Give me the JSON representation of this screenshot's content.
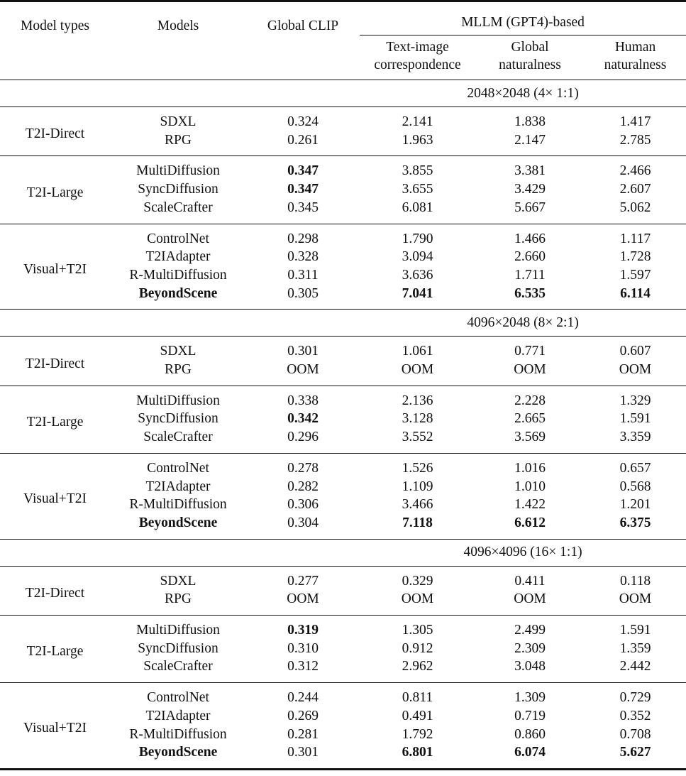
{
  "header": {
    "model_types": "Model types",
    "models": "Models",
    "global_clip": "Global CLIP",
    "mllm_group": "MLLM (GPT4)-based",
    "text_image_1": "Text-image",
    "text_image_2": "correspondence",
    "global_nat_1": "Global",
    "global_nat_2": "naturalness",
    "human_nat_1": "Human",
    "human_nat_2": "naturalness"
  },
  "sections": [
    {
      "label": "2048×2048 (4× 1:1)",
      "groups": [
        {
          "type": "T2I-Direct",
          "rows": [
            {
              "model": "SDXL",
              "values": [
                "0.324",
                "2.141",
                "1.838",
                "1.417"
              ],
              "bold": []
            },
            {
              "model": "RPG",
              "values": [
                "0.261",
                "1.963",
                "2.147",
                "2.785"
              ],
              "bold": []
            }
          ]
        },
        {
          "type": "T2I-Large",
          "rows": [
            {
              "model": "MultiDiffusion",
              "values": [
                "0.347",
                "3.855",
                "3.381",
                "2.466"
              ],
              "bold": [
                1
              ]
            },
            {
              "model": "SyncDiffusion",
              "values": [
                "0.347",
                "3.655",
                "3.429",
                "2.607"
              ],
              "bold": [
                1
              ]
            },
            {
              "model": "ScaleCrafter",
              "values": [
                "0.345",
                "6.081",
                "5.667",
                "5.062"
              ],
              "bold": []
            }
          ]
        },
        {
          "type": "Visual+T2I",
          "rows": [
            {
              "model": "ControlNet",
              "values": [
                "0.298",
                "1.790",
                "1.466",
                "1.117"
              ],
              "bold": []
            },
            {
              "model": "T2IAdapter",
              "values": [
                "0.328",
                "3.094",
                "2.660",
                "1.728"
              ],
              "bold": []
            },
            {
              "model": "R-MultiDiffusion",
              "values": [
                "0.311",
                "3.636",
                "1.711",
                "1.597"
              ],
              "bold": []
            },
            {
              "model": "BeyondScene",
              "values": [
                "0.305",
                "7.041",
                "6.535",
                "6.114"
              ],
              "bold": [
                0,
                2,
                3,
                4
              ]
            }
          ]
        }
      ]
    },
    {
      "label": "4096×2048 (8× 2:1)",
      "groups": [
        {
          "type": "T2I-Direct",
          "rows": [
            {
              "model": "SDXL",
              "values": [
                "0.301",
                "1.061",
                "0.771",
                "0.607"
              ],
              "bold": []
            },
            {
              "model": "RPG",
              "values": [
                "OOM",
                "OOM",
                "OOM",
                "OOM"
              ],
              "bold": []
            }
          ]
        },
        {
          "type": "T2I-Large",
          "rows": [
            {
              "model": "MultiDiffusion",
              "values": [
                "0.338",
                "2.136",
                "2.228",
                "1.329"
              ],
              "bold": []
            },
            {
              "model": "SyncDiffusion",
              "values": [
                "0.342",
                "3.128",
                "2.665",
                "1.591"
              ],
              "bold": [
                1
              ]
            },
            {
              "model": "ScaleCrafter",
              "values": [
                "0.296",
                "3.552",
                "3.569",
                "3.359"
              ],
              "bold": []
            }
          ]
        },
        {
          "type": "Visual+T2I",
          "rows": [
            {
              "model": "ControlNet",
              "values": [
                "0.278",
                "1.526",
                "1.016",
                "0.657"
              ],
              "bold": []
            },
            {
              "model": "T2IAdapter",
              "values": [
                "0.282",
                "1.109",
                "1.010",
                "0.568"
              ],
              "bold": []
            },
            {
              "model": "R-MultiDiffusion",
              "values": [
                "0.306",
                "3.466",
                "1.422",
                "1.201"
              ],
              "bold": []
            },
            {
              "model": "BeyondScene",
              "values": [
                "0.304",
                "7.118",
                "6.612",
                "6.375"
              ],
              "bold": [
                0,
                2,
                3,
                4
              ]
            }
          ]
        }
      ]
    },
    {
      "label": "4096×4096 (16× 1:1)",
      "groups": [
        {
          "type": "T2I-Direct",
          "rows": [
            {
              "model": "SDXL",
              "values": [
                "0.277",
                "0.329",
                "0.411",
                "0.118"
              ],
              "bold": []
            },
            {
              "model": "RPG",
              "values": [
                "OOM",
                "OOM",
                "OOM",
                "OOM"
              ],
              "bold": []
            }
          ]
        },
        {
          "type": "T2I-Large",
          "rows": [
            {
              "model": "MultiDiffusion",
              "values": [
                "0.319",
                "1.305",
                "2.499",
                "1.591"
              ],
              "bold": [
                1
              ]
            },
            {
              "model": "SyncDiffusion",
              "values": [
                "0.310",
                "0.912",
                "2.309",
                "1.359"
              ],
              "bold": []
            },
            {
              "model": "ScaleCrafter",
              "values": [
                "0.312",
                "2.962",
                "3.048",
                "2.442"
              ],
              "bold": []
            }
          ]
        },
        {
          "type": "Visual+T2I",
          "rows": [
            {
              "model": "ControlNet",
              "values": [
                "0.244",
                "0.811",
                "1.309",
                "0.729"
              ],
              "bold": []
            },
            {
              "model": "T2IAdapter",
              "values": [
                "0.269",
                "0.491",
                "0.719",
                "0.352"
              ],
              "bold": []
            },
            {
              "model": "R-MultiDiffusion",
              "values": [
                "0.281",
                "1.792",
                "0.860",
                "0.708"
              ],
              "bold": []
            },
            {
              "model": "BeyondScene",
              "values": [
                "0.301",
                "6.801",
                "6.074",
                "5.627"
              ],
              "bold": [
                0,
                2,
                3,
                4
              ]
            }
          ]
        }
      ]
    }
  ]
}
